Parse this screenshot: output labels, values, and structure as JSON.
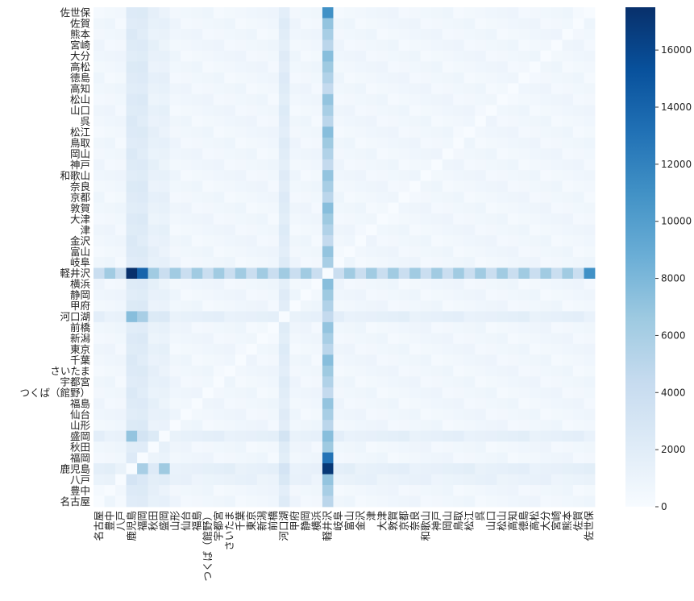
{
  "chart_data": {
    "type": "heatmap",
    "title": "",
    "xlabel": "",
    "ylabel": "",
    "colormap": "Blues",
    "colors": {
      "low": "#f7fbff",
      "high": "#08306b"
    },
    "value_range": [
      0,
      17500
    ],
    "colorbar_ticks": [
      "0",
      "2000",
      "4000",
      "6000",
      "8000",
      "10000",
      "12000",
      "14000",
      "16000"
    ],
    "colorbar_tick_values": [
      0,
      2000,
      4000,
      6000,
      8000,
      10000,
      12000,
      14000,
      16000
    ],
    "grid": false,
    "legend": "colorbar-right",
    "row_labels": [
      "佐世保",
      "佐賀",
      "熊本",
      "宮崎",
      "大分",
      "高松",
      "徳島",
      "高知",
      "松山",
      "山口",
      "呉",
      "松江",
      "鳥取",
      "岡山",
      "神戸",
      "和歌山",
      "奈良",
      "京都",
      "敦賀",
      "大津",
      "津",
      "金沢",
      "富山",
      "岐阜",
      "軽井沢",
      "横浜",
      "静岡",
      "甲府",
      "河口湖",
      "前橋",
      "新潟",
      "東京",
      "千葉",
      "さいたま",
      "宇都宮",
      "つくば（館野）",
      "福島",
      "仙台",
      "山形",
      "盛岡",
      "秋田",
      "福岡",
      "鹿児島",
      "八戸",
      "豊中",
      "名古屋"
    ],
    "col_labels": [
      "名古屋",
      "豊中",
      "八戸",
      "鹿児島",
      "福岡",
      "秋田",
      "盛岡",
      "山形",
      "仙台",
      "福島",
      "つくば（館野）",
      "宇都宮",
      "さいたま",
      "千葉",
      "東京",
      "新潟",
      "前橋",
      "河口湖",
      "甲府",
      "静岡",
      "横浜",
      "軽井沢",
      "岐阜",
      "富山",
      "金沢",
      "津",
      "大津",
      "敦賀",
      "京都",
      "奈良",
      "和歌山",
      "神戸",
      "岡山",
      "鳥取",
      "松江",
      "呉",
      "山口",
      "松山",
      "高知",
      "徳島",
      "高松",
      "大分",
      "宮崎",
      "熊本",
      "佐賀",
      "佐世保"
    ]
  }
}
